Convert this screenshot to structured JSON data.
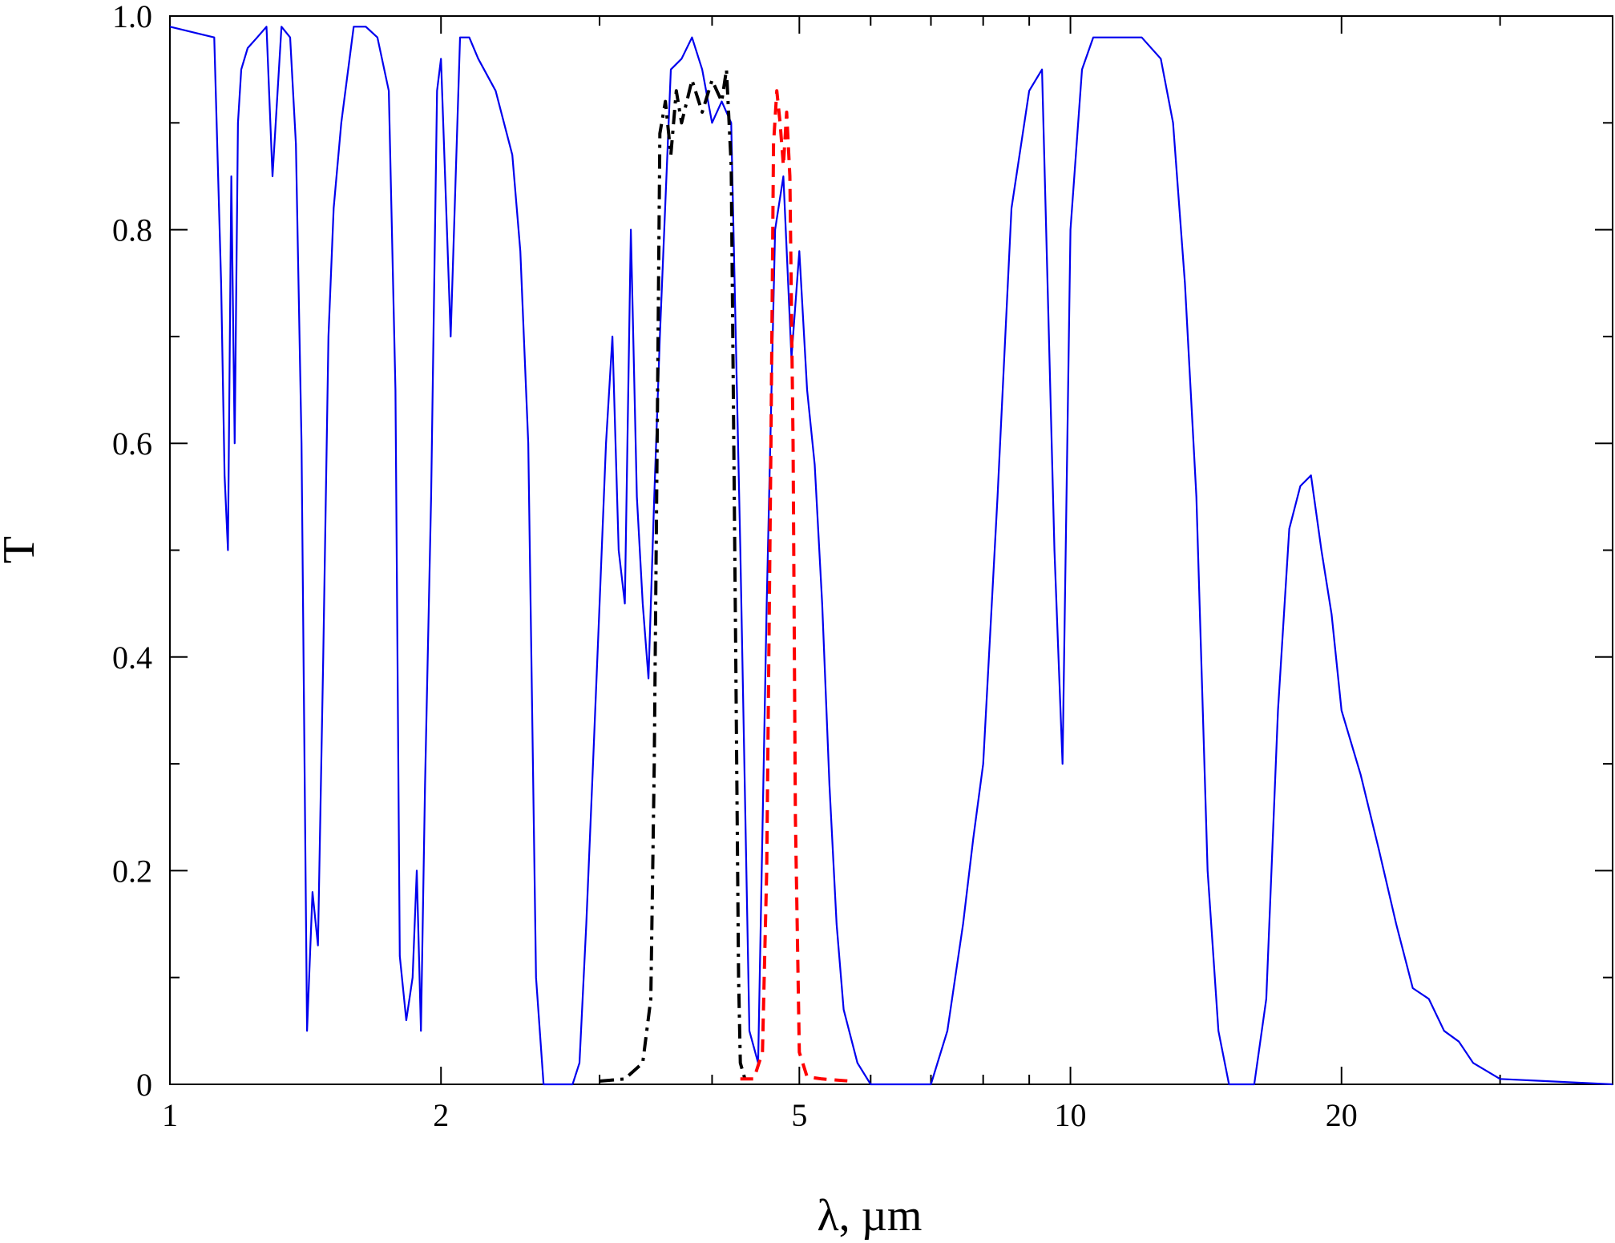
{
  "chart_data": {
    "type": "line",
    "xscale": "log",
    "xlim": [
      1,
      40
    ],
    "ylim": [
      0,
      1.0
    ],
    "xlabel": "λ, µm",
    "ylabel": "T",
    "x_ticks": [
      {
        "value": 1,
        "label": "1"
      },
      {
        "value": 2,
        "label": "2"
      },
      {
        "value": 5,
        "label": "5"
      },
      {
        "value": 10,
        "label": "10"
      },
      {
        "value": 20,
        "label": "20"
      }
    ],
    "x_minor_ticks": [
      3,
      4,
      6,
      7,
      8,
      9,
      30
    ],
    "y_ticks": [
      {
        "value": 0,
        "label": "0"
      },
      {
        "value": 0.2,
        "label": "0.2"
      },
      {
        "value": 0.4,
        "label": "0.4"
      },
      {
        "value": 0.6,
        "label": "0.6"
      },
      {
        "value": 0.8,
        "label": "0.8"
      },
      {
        "value": 1.0,
        "label": "1.0"
      }
    ],
    "y_minor_ticks": [
      0.1,
      0.3,
      0.5,
      0.7,
      0.9
    ],
    "grid": false,
    "legend": "none",
    "series": [
      {
        "color": "#0000ee",
        "style": "solid",
        "x": [
          1.0,
          1.12,
          1.14,
          1.15,
          1.16,
          1.17,
          1.18,
          1.19,
          1.2,
          1.22,
          1.25,
          1.28,
          1.3,
          1.33,
          1.36,
          1.38,
          1.4,
          1.42,
          1.44,
          1.46,
          1.48,
          1.5,
          1.52,
          1.55,
          1.6,
          1.65,
          1.7,
          1.75,
          1.78,
          1.8,
          1.83,
          1.86,
          1.88,
          1.9,
          1.92,
          1.95,
          1.98,
          2.0,
          2.05,
          2.1,
          2.15,
          2.2,
          2.3,
          2.4,
          2.45,
          2.5,
          2.55,
          2.6,
          2.7,
          2.8,
          2.85,
          2.9,
          2.95,
          3.0,
          3.05,
          3.1,
          3.15,
          3.2,
          3.25,
          3.3,
          3.35,
          3.4,
          3.45,
          3.5,
          3.6,
          3.7,
          3.8,
          3.9,
          4.0,
          4.1,
          4.2,
          4.3,
          4.4,
          4.5,
          4.6,
          4.7,
          4.8,
          4.9,
          5.0,
          5.1,
          5.2,
          5.3,
          5.4,
          5.5,
          5.6,
          5.8,
          6.0,
          6.5,
          7.0,
          7.3,
          7.6,
          7.8,
          8.0,
          8.3,
          8.6,
          9.0,
          9.3,
          9.6,
          9.8,
          10.0,
          10.3,
          10.6,
          11.0,
          12.0,
          12.6,
          13.0,
          13.4,
          13.8,
          14.2,
          14.6,
          15.0,
          15.5,
          16.0,
          16.5,
          17.0,
          17.5,
          18.0,
          18.5,
          19.0,
          19.5,
          20.0,
          21.0,
          22.0,
          23.0,
          24.0,
          25.0,
          26.0,
          27.0,
          28.0,
          30.0,
          40.0
        ],
        "y": [
          0.99,
          0.98,
          0.75,
          0.57,
          0.5,
          0.85,
          0.6,
          0.9,
          0.95,
          0.97,
          0.98,
          0.99,
          0.85,
          0.99,
          0.98,
          0.88,
          0.6,
          0.05,
          0.18,
          0.13,
          0.4,
          0.7,
          0.82,
          0.9,
          0.99,
          0.99,
          0.98,
          0.93,
          0.65,
          0.12,
          0.06,
          0.1,
          0.2,
          0.05,
          0.28,
          0.55,
          0.93,
          0.96,
          0.7,
          0.98,
          0.98,
          0.96,
          0.93,
          0.87,
          0.78,
          0.6,
          0.1,
          0.0,
          0.0,
          0.0,
          0.02,
          0.15,
          0.3,
          0.45,
          0.6,
          0.7,
          0.5,
          0.45,
          0.8,
          0.55,
          0.45,
          0.38,
          0.55,
          0.7,
          0.95,
          0.96,
          0.98,
          0.95,
          0.9,
          0.92,
          0.9,
          0.5,
          0.05,
          0.02,
          0.45,
          0.8,
          0.85,
          0.68,
          0.78,
          0.65,
          0.58,
          0.45,
          0.28,
          0.15,
          0.07,
          0.02,
          0.0,
          0.0,
          0.0,
          0.05,
          0.15,
          0.23,
          0.3,
          0.55,
          0.82,
          0.93,
          0.95,
          0.5,
          0.3,
          0.8,
          0.95,
          0.98,
          0.98,
          0.98,
          0.96,
          0.9,
          0.75,
          0.55,
          0.2,
          0.05,
          0.0,
          0.0,
          0.0,
          0.08,
          0.35,
          0.52,
          0.56,
          0.57,
          0.5,
          0.44,
          0.35,
          0.29,
          0.22,
          0.15,
          0.09,
          0.08,
          0.05,
          0.04,
          0.02,
          0.005,
          0.0
        ]
      },
      {
        "color": "#000000",
        "style": "dash-dot",
        "x": [
          3.0,
          3.2,
          3.35,
          3.42,
          3.45,
          3.48,
          3.5,
          3.55,
          3.6,
          3.65,
          3.7,
          3.8,
          3.9,
          4.0,
          4.1,
          4.15,
          4.2,
          4.25,
          4.28,
          4.3,
          4.35
        ],
        "y": [
          0.003,
          0.005,
          0.02,
          0.08,
          0.3,
          0.65,
          0.89,
          0.92,
          0.87,
          0.93,
          0.9,
          0.94,
          0.91,
          0.94,
          0.92,
          0.95,
          0.86,
          0.4,
          0.1,
          0.02,
          0.005
        ]
      },
      {
        "color": "#ff0000",
        "style": "dashed",
        "x": [
          4.3,
          4.45,
          4.55,
          4.6,
          4.65,
          4.68,
          4.72,
          4.76,
          4.8,
          4.84,
          4.88,
          4.92,
          4.95,
          5.0,
          5.1,
          5.3,
          5.7
        ],
        "y": [
          0.005,
          0.005,
          0.03,
          0.2,
          0.6,
          0.88,
          0.93,
          0.9,
          0.86,
          0.91,
          0.85,
          0.6,
          0.25,
          0.03,
          0.007,
          0.005,
          0.003
        ]
      }
    ]
  }
}
